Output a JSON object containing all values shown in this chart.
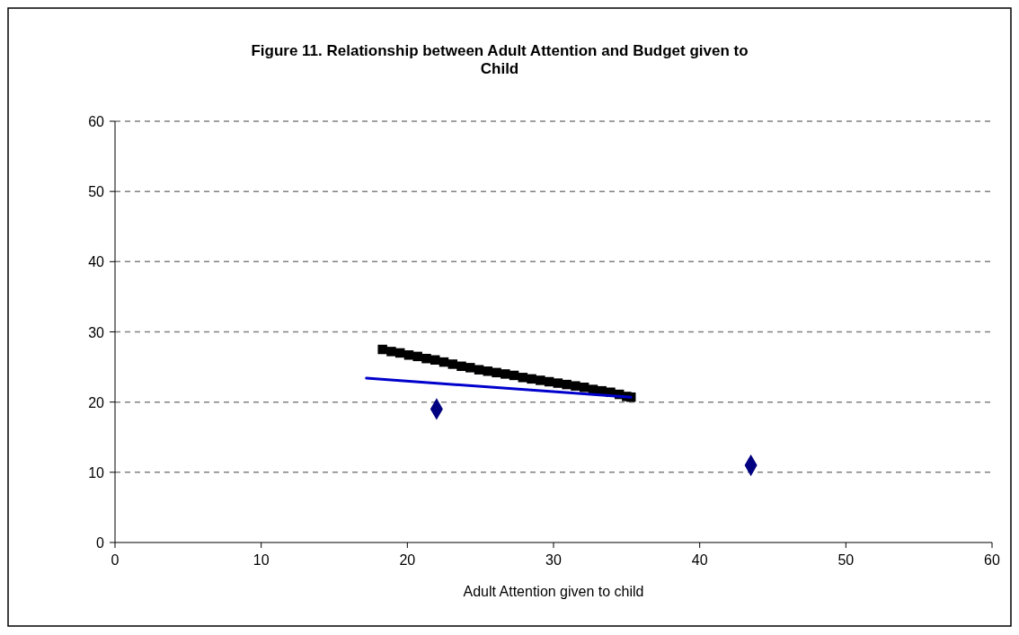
{
  "chart_data": {
    "type": "scatter",
    "title": "Figure 11. Relationship between Adult Attention and Budget given to Child",
    "xlabel": "Adult Attention given to child",
    "xlim": [
      0,
      60
    ],
    "xticks": [
      0,
      10,
      20,
      30,
      40,
      50,
      60
    ],
    "ylim": [
      0,
      60
    ],
    "yticks": [
      0,
      10,
      20,
      30,
      40,
      50,
      60
    ],
    "grid": "y",
    "series": [
      {
        "color": "#000000",
        "marker": "square",
        "x": [
          18.3,
          18.9,
          19.5,
          20.1,
          20.7,
          21.3,
          21.9,
          22.5,
          23.1,
          23.7,
          24.3,
          24.9,
          25.5,
          26.1,
          26.7,
          27.3,
          27.9,
          28.5,
          29.1,
          29.7,
          30.3,
          30.9,
          31.5,
          32.1,
          32.7,
          33.3,
          33.9,
          34.5,
          35.0,
          35.3
        ],
        "values": [
          27.5,
          27.2,
          27.0,
          26.7,
          26.5,
          26.2,
          26.0,
          25.7,
          25.4,
          25.1,
          24.9,
          24.6,
          24.4,
          24.2,
          24.0,
          23.8,
          23.5,
          23.3,
          23.1,
          22.9,
          22.7,
          22.5,
          22.3,
          22.1,
          21.8,
          21.6,
          21.4,
          21.1,
          20.8,
          20.7
        ]
      },
      {
        "color": "#000080",
        "marker": "diamond",
        "x": [
          22,
          43.5
        ],
        "values": [
          19,
          11
        ]
      },
      {
        "type": "line",
        "color": "#0000cc",
        "marker": "none",
        "line_style": "solid",
        "x": [
          17.2,
          35.3
        ],
        "values": [
          23.4,
          20.7
        ]
      }
    ]
  }
}
